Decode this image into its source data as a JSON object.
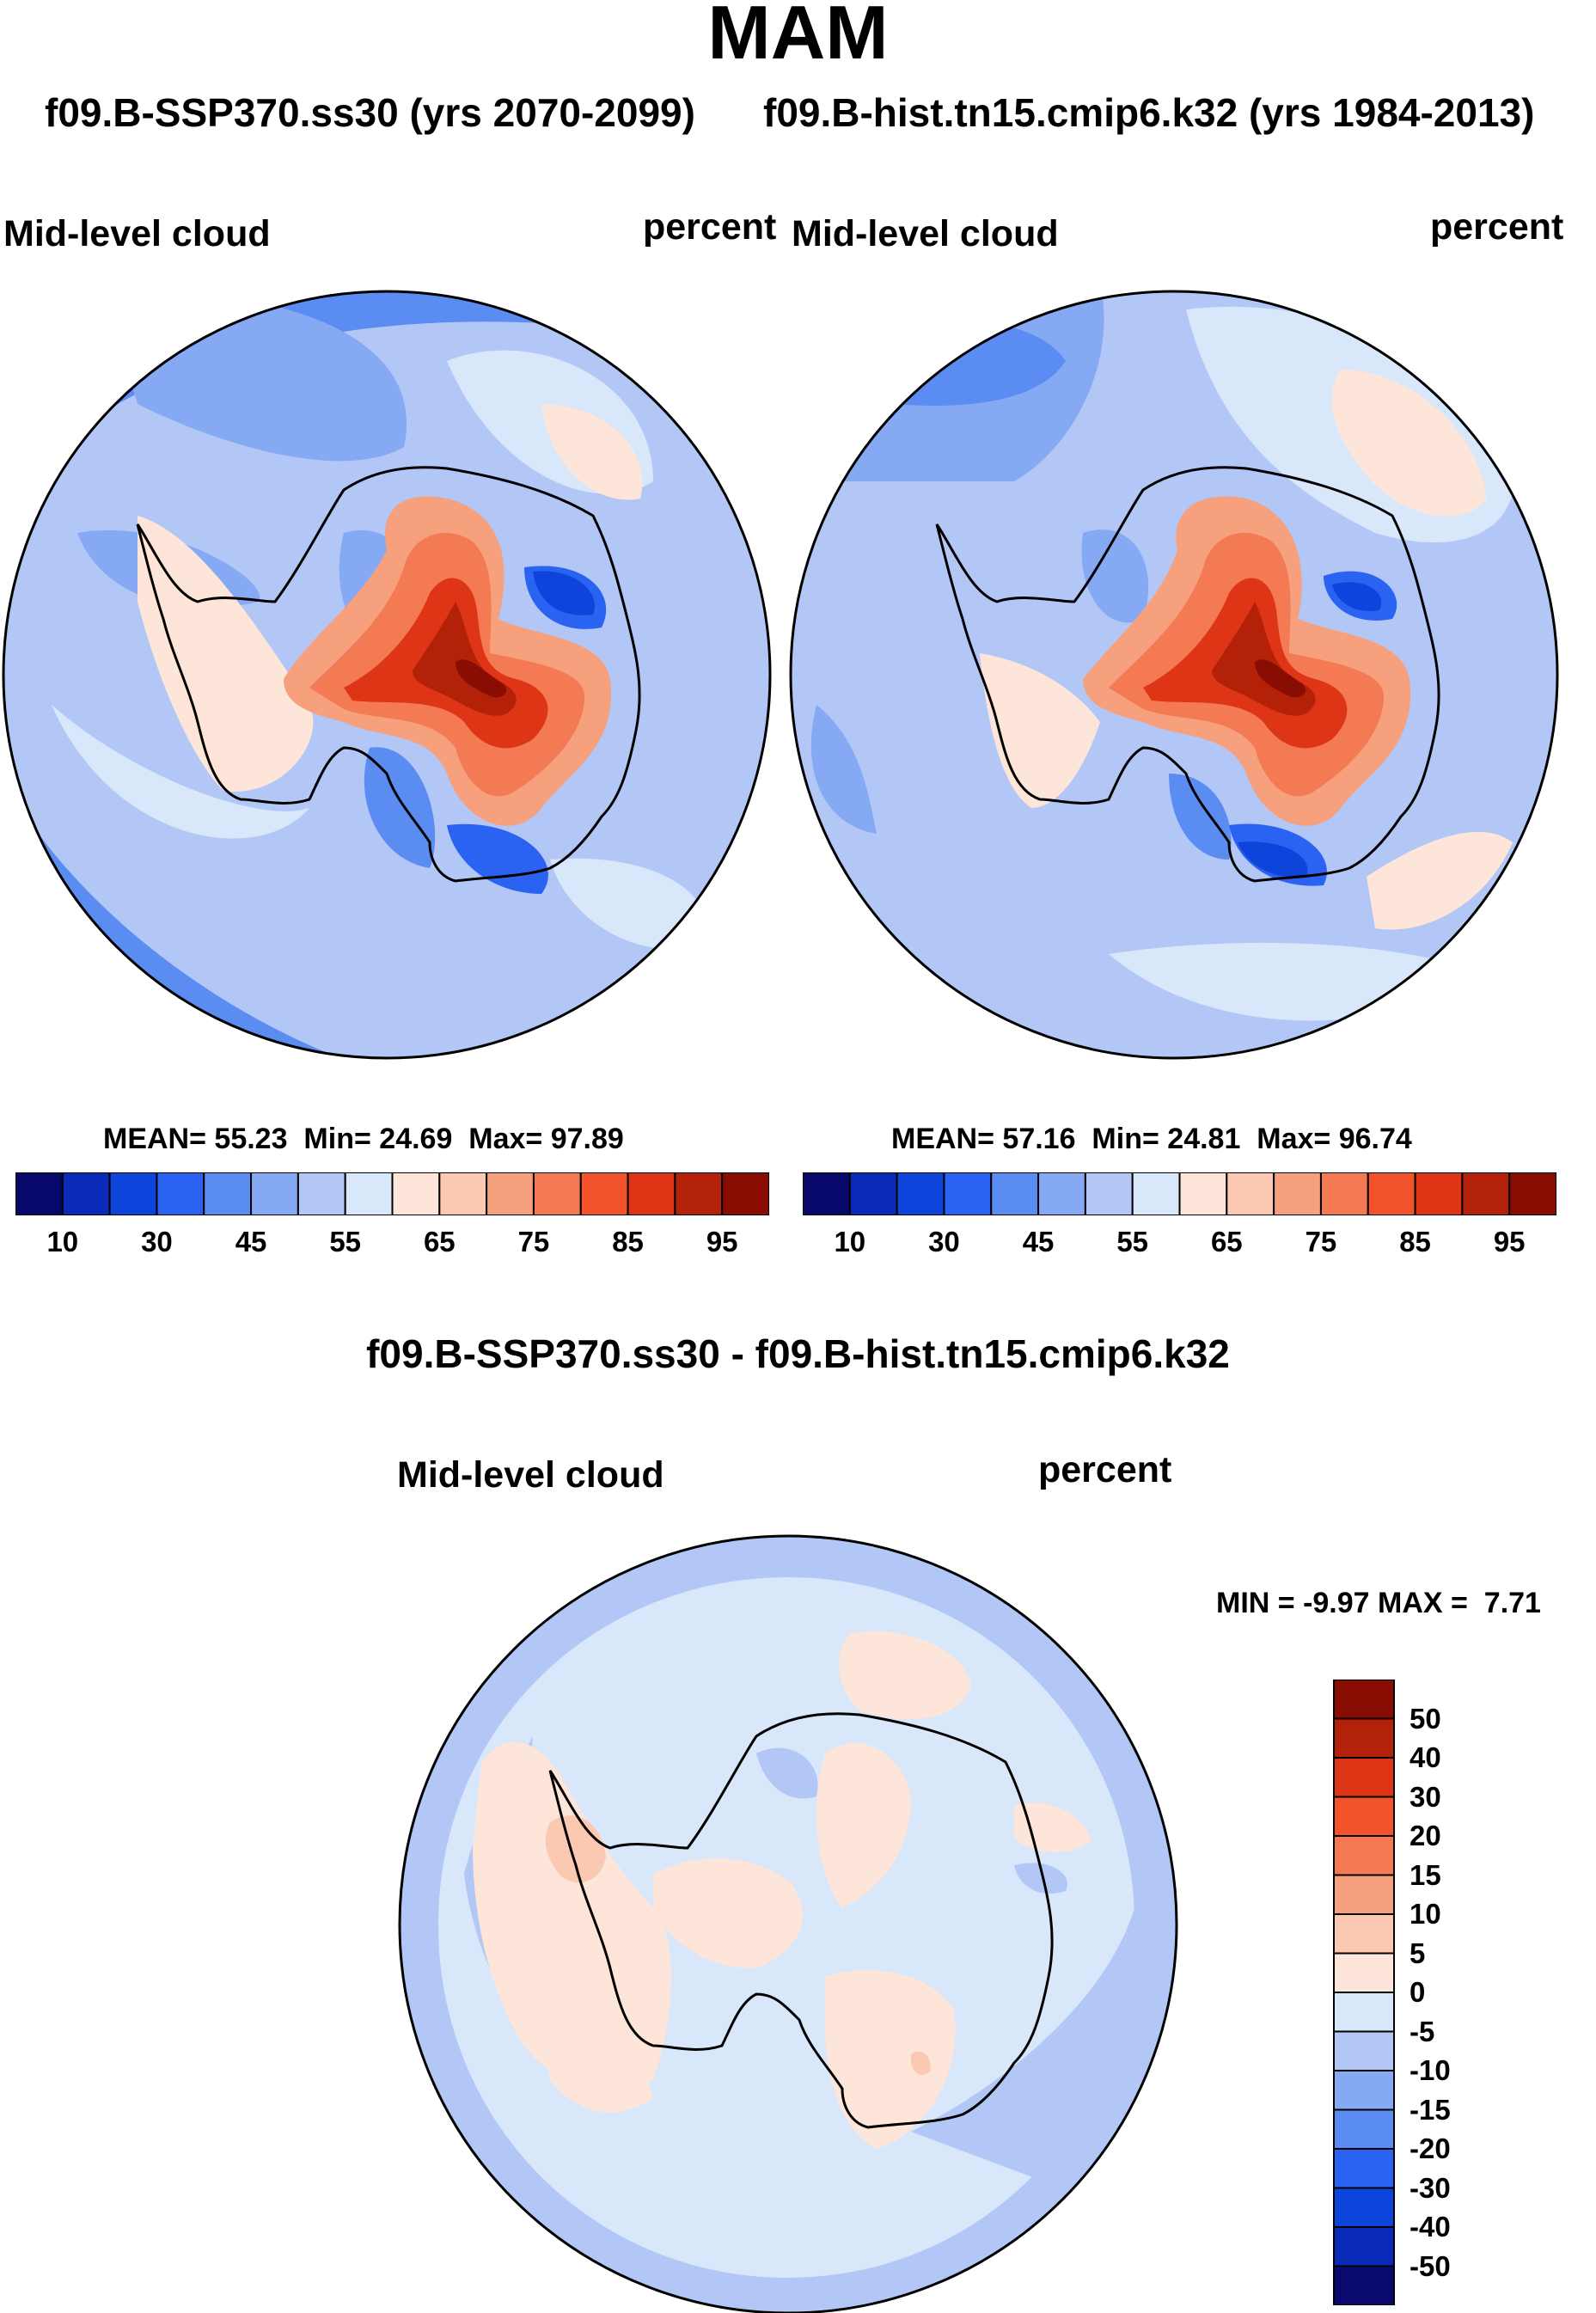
{
  "title": "MAM",
  "case_left": "f09.B-SSP370.ss30 (yrs 2070-2099)",
  "case_right": "f09.B-hist.tn15.cmip6.k32 (yrs 1984-2013)",
  "diff_title": "f09.B-SSP370.ss30 - f09.B-hist.tn15.cmip6.k32",
  "panels": {
    "left": {
      "variable": "Mid-level cloud",
      "units": "percent"
    },
    "right": {
      "variable": "Mid-level cloud",
      "units": "percent"
    },
    "diff": {
      "variable": "Mid-level cloud",
      "units": "percent"
    }
  },
  "stats": {
    "left": {
      "mean_label": "MEAN=",
      "mean": "55.23",
      "min_label": "Min=",
      "min": "24.69",
      "max_label": "Max=",
      "max": "97.89"
    },
    "right": {
      "mean_label": "MEAN=",
      "mean": "57.16",
      "min_label": "Min=",
      "min": "24.81",
      "max_label": "Max=",
      "max": "96.74"
    },
    "diff": {
      "min_label": "MIN =",
      "min": "-9.97",
      "max_label": "MAX =",
      "max": "7.71"
    }
  },
  "colorbar_top": {
    "colors": [
      "#08086b",
      "#0a2ab8",
      "#0c44dc",
      "#2a62f2",
      "#5b8cf2",
      "#86a9f3",
      "#b2c7f6",
      "#d9e7fb",
      "#fde6d9",
      "#fbc9b1",
      "#f6a07e",
      "#f47a53",
      "#f2532a",
      "#dd3516",
      "#b32108",
      "#8a0d03"
    ],
    "tick_labels": [
      "10",
      "30",
      "45",
      "55",
      "65",
      "75",
      "85",
      "95"
    ]
  },
  "colorbar_diff": {
    "colors": [
      "#0a0a6e",
      "#0a2ab8",
      "#0c44dc",
      "#2a62f2",
      "#5b8cf2",
      "#86a9f3",
      "#b2c7f6",
      "#d9e7fb",
      "#fde6d9",
      "#fbc9b1",
      "#f6a07e",
      "#f47a53",
      "#f2532a",
      "#dd3516",
      "#b32108",
      "#8a0d03"
    ],
    "tick_labels": [
      "-50",
      "-40",
      "-30",
      "-20",
      "-15",
      "-10",
      "-5",
      "0",
      "5",
      "10",
      "15",
      "20",
      "30",
      "40",
      "50"
    ]
  },
  "chart_data": [
    {
      "type": "heatmap",
      "title": "Mid-level cloud",
      "subtitle": "f09.B-SSP370.ss30 (yrs 2070-2099)",
      "units": "percent",
      "projection": "south polar stereographic",
      "levels": [
        10,
        20,
        30,
        40,
        45,
        50,
        55,
        60,
        65,
        70,
        75,
        80,
        85,
        90,
        95
      ],
      "mean": 55.23,
      "min": 24.69,
      "max": 97.89
    },
    {
      "type": "heatmap",
      "title": "Mid-level cloud",
      "subtitle": "f09.B-hist.tn15.cmip6.k32 (yrs 1984-2013)",
      "units": "percent",
      "projection": "south polar stereographic",
      "levels": [
        10,
        20,
        30,
        40,
        45,
        50,
        55,
        60,
        65,
        70,
        75,
        80,
        85,
        90,
        95
      ],
      "mean": 57.16,
      "min": 24.81,
      "max": 96.74
    },
    {
      "type": "heatmap",
      "title": "Mid-level cloud",
      "subtitle": "f09.B-SSP370.ss30 - f09.B-hist.tn15.cmip6.k32",
      "units": "percent",
      "projection": "south polar stereographic",
      "levels": [
        -50,
        -40,
        -30,
        -20,
        -15,
        -10,
        -5,
        0,
        5,
        10,
        15,
        20,
        30,
        40,
        50
      ],
      "min": -9.97,
      "max": 7.71
    }
  ]
}
